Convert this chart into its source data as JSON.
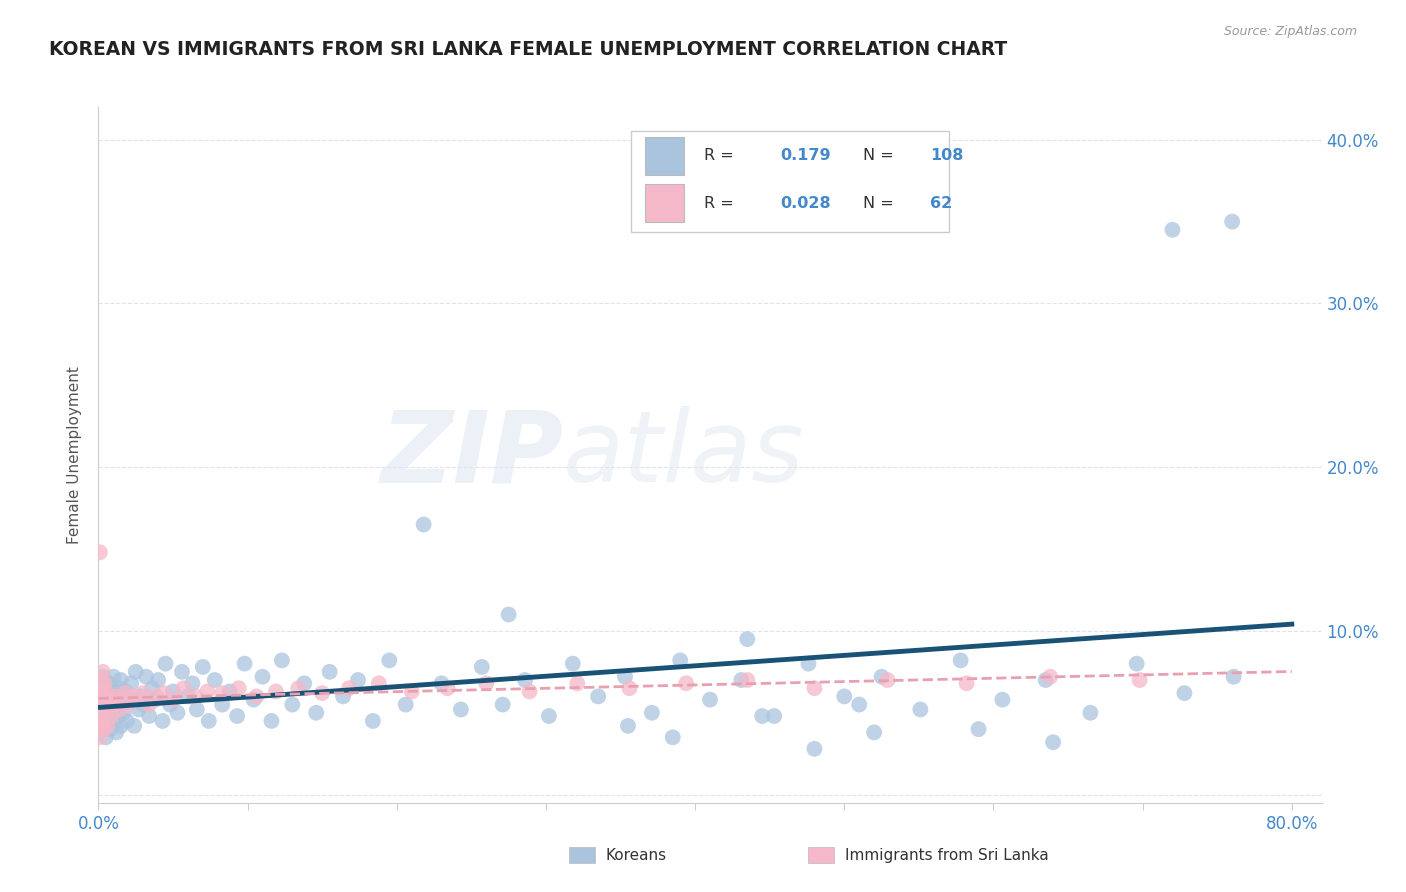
{
  "title": "KOREAN VS IMMIGRANTS FROM SRI LANKA FEMALE UNEMPLOYMENT CORRELATION CHART",
  "source": "Source: ZipAtlas.com",
  "ylabel": "Female Unemployment",
  "watermark_zip": "ZIP",
  "watermark_atlas": "atlas",
  "xlim": [
    0.0,
    0.82
  ],
  "ylim": [
    -0.005,
    0.42
  ],
  "xtick_pos": [
    0.0,
    0.1,
    0.2,
    0.3,
    0.4,
    0.5,
    0.6,
    0.7,
    0.8
  ],
  "xtick_labels": [
    "0.0%",
    "",
    "",
    "",
    "",
    "",
    "",
    "",
    "80.0%"
  ],
  "ytick_pos": [
    0.0,
    0.1,
    0.2,
    0.3,
    0.4
  ],
  "ytick_labels": [
    "",
    "10.0%",
    "20.0%",
    "30.0%",
    "40.0%"
  ],
  "legend_korean": "Koreans",
  "legend_srilanka": "Immigrants from Sri Lanka",
  "korean_R": "0.179",
  "korean_N": "108",
  "srilanka_R": "0.028",
  "srilanka_N": "62",
  "korean_color": "#aac4de",
  "srilanka_color": "#f5b8c8",
  "korean_line_color": "#1a5276",
  "srilanka_line_color": "#e8a0b0",
  "background_color": "#ffffff",
  "grid_color": "#dde4ef",
  "title_color": "#222222",
  "axis_label_color": "#555555",
  "tick_color": "#4488cc",
  "korean_x": [
    0.002,
    0.003,
    0.003,
    0.004,
    0.004,
    0.005,
    0.005,
    0.005,
    0.006,
    0.006,
    0.007,
    0.007,
    0.008,
    0.008,
    0.009,
    0.009,
    0.01,
    0.01,
    0.011,
    0.012,
    0.012,
    0.013,
    0.014,
    0.015,
    0.015,
    0.016,
    0.017,
    0.018,
    0.019,
    0.02,
    0.022,
    0.024,
    0.025,
    0.027,
    0.028,
    0.03,
    0.032,
    0.034,
    0.036,
    0.038,
    0.04,
    0.043,
    0.045,
    0.048,
    0.05,
    0.053,
    0.056,
    0.06,
    0.063,
    0.066,
    0.07,
    0.074,
    0.078,
    0.083,
    0.088,
    0.093,
    0.098,
    0.104,
    0.11,
    0.116,
    0.123,
    0.13,
    0.138,
    0.146,
    0.155,
    0.164,
    0.174,
    0.184,
    0.195,
    0.206,
    0.218,
    0.23,
    0.243,
    0.257,
    0.271,
    0.286,
    0.302,
    0.318,
    0.335,
    0.353,
    0.371,
    0.39,
    0.41,
    0.431,
    0.453,
    0.476,
    0.5,
    0.525,
    0.551,
    0.578,
    0.606,
    0.635,
    0.665,
    0.696,
    0.728,
    0.761,
    0.72,
    0.76,
    0.275,
    0.435,
    0.355,
    0.52,
    0.48,
    0.59,
    0.64,
    0.51,
    0.445,
    0.385
  ],
  "korean_y": [
    0.055,
    0.048,
    0.072,
    0.05,
    0.063,
    0.042,
    0.058,
    0.035,
    0.06,
    0.045,
    0.053,
    0.068,
    0.04,
    0.057,
    0.05,
    0.065,
    0.044,
    0.072,
    0.055,
    0.038,
    0.06,
    0.048,
    0.065,
    0.042,
    0.07,
    0.055,
    0.05,
    0.063,
    0.045,
    0.058,
    0.068,
    0.042,
    0.075,
    0.052,
    0.06,
    0.055,
    0.072,
    0.048,
    0.065,
    0.058,
    0.07,
    0.045,
    0.08,
    0.055,
    0.063,
    0.05,
    0.075,
    0.06,
    0.068,
    0.052,
    0.078,
    0.045,
    0.07,
    0.055,
    0.063,
    0.048,
    0.08,
    0.058,
    0.072,
    0.045,
    0.082,
    0.055,
    0.068,
    0.05,
    0.075,
    0.06,
    0.07,
    0.045,
    0.082,
    0.055,
    0.165,
    0.068,
    0.052,
    0.078,
    0.055,
    0.07,
    0.048,
    0.08,
    0.06,
    0.072,
    0.05,
    0.082,
    0.058,
    0.07,
    0.048,
    0.08,
    0.06,
    0.072,
    0.052,
    0.082,
    0.058,
    0.07,
    0.05,
    0.08,
    0.062,
    0.072,
    0.345,
    0.35,
    0.11,
    0.095,
    0.042,
    0.038,
    0.028,
    0.04,
    0.032,
    0.055,
    0.048,
    0.035
  ],
  "srilanka_x": [
    0.001,
    0.001,
    0.001,
    0.001,
    0.001,
    0.002,
    0.002,
    0.002,
    0.002,
    0.002,
    0.003,
    0.003,
    0.003,
    0.003,
    0.004,
    0.004,
    0.004,
    0.005,
    0.005,
    0.006,
    0.006,
    0.007,
    0.008,
    0.009,
    0.01,
    0.011,
    0.012,
    0.014,
    0.016,
    0.018,
    0.02,
    0.023,
    0.026,
    0.03,
    0.034,
    0.039,
    0.044,
    0.05,
    0.057,
    0.065,
    0.073,
    0.083,
    0.094,
    0.106,
    0.119,
    0.134,
    0.15,
    0.168,
    0.188,
    0.21,
    0.234,
    0.26,
    0.289,
    0.321,
    0.356,
    0.394,
    0.435,
    0.48,
    0.529,
    0.582,
    0.638,
    0.698
  ],
  "srilanka_y": [
    0.148,
    0.062,
    0.055,
    0.048,
    0.035,
    0.07,
    0.058,
    0.042,
    0.065,
    0.05,
    0.075,
    0.06,
    0.045,
    0.055,
    0.068,
    0.048,
    0.04,
    0.063,
    0.055,
    0.058,
    0.042,
    0.06,
    0.052,
    0.048,
    0.058,
    0.055,
    0.06,
    0.052,
    0.058,
    0.062,
    0.055,
    0.06,
    0.058,
    0.062,
    0.055,
    0.06,
    0.062,
    0.058,
    0.065,
    0.06,
    0.063,
    0.062,
    0.065,
    0.06,
    0.063,
    0.065,
    0.062,
    0.065,
    0.068,
    0.063,
    0.065,
    0.068,
    0.063,
    0.068,
    0.065,
    0.068,
    0.07,
    0.065,
    0.07,
    0.068,
    0.072,
    0.07
  ]
}
